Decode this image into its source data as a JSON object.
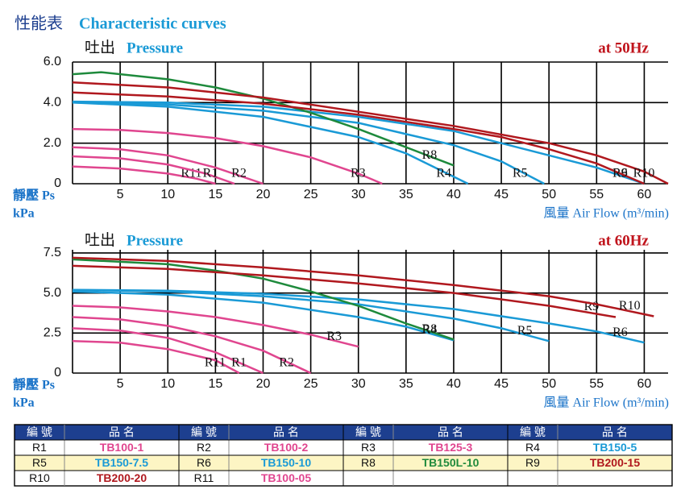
{
  "header": {
    "title": "性能表",
    "subtitle": "Characteristic curves"
  },
  "chart_data": [
    {
      "type": "line",
      "title": "吐出",
      "subtitle": "Pressure",
      "annotation": "at 50Hz",
      "ylabel": "靜壓 Ps",
      "yunit": "kPa",
      "xlabel": "風量 Air Flow (m³/min)",
      "xlim": [
        0,
        62.5
      ],
      "xticks": [
        5,
        10,
        15,
        20,
        25,
        30,
        35,
        40,
        45,
        50,
        55,
        60
      ],
      "ylim": [
        0,
        6
      ],
      "yticks": [
        0,
        {
          "value": 2,
          "label": "2.0"
        },
        {
          "value": 4,
          "label": "4.0"
        },
        {
          "value": 6,
          "label": "6.0"
        }
      ],
      "grid": true,
      "series": [
        {
          "name": "R11",
          "color": "#e0468f",
          "x": [
            0,
            5,
            10,
            13,
            15
          ],
          "values": [
            0.85,
            0.75,
            0.5,
            0.25,
            0
          ]
        },
        {
          "name": "R1",
          "color": "#e0468f",
          "x": [
            0,
            5,
            10,
            14,
            17
          ],
          "values": [
            1.35,
            1.25,
            0.95,
            0.5,
            0
          ]
        },
        {
          "name": "R2",
          "color": "#e0468f",
          "x": [
            0,
            5,
            10,
            15,
            20
          ],
          "values": [
            1.8,
            1.7,
            1.4,
            0.8,
            0
          ]
        },
        {
          "name": "R3",
          "color": "#e0468f",
          "x": [
            0,
            5,
            10,
            15,
            20,
            25,
            30,
            32.5
          ],
          "values": [
            2.7,
            2.65,
            2.5,
            2.25,
            1.85,
            1.3,
            0.5,
            0
          ]
        },
        {
          "name": "R4",
          "color": "#1a9ad6",
          "x": [
            0,
            10,
            20,
            30,
            35,
            41.5
          ],
          "values": [
            4.0,
            3.8,
            3.3,
            2.3,
            1.5,
            0
          ]
        },
        {
          "name": "R5",
          "color": "#1a9ad6",
          "x": [
            0,
            10,
            20,
            30,
            40,
            45,
            49.5
          ],
          "values": [
            4.0,
            3.9,
            3.6,
            3.0,
            1.9,
            1.1,
            0
          ]
        },
        {
          "name": "R6",
          "color": "#1a9ad6",
          "x": [
            0,
            10,
            20,
            30,
            40,
            50,
            55,
            60
          ],
          "values": [
            4.05,
            4.0,
            3.8,
            3.3,
            2.6,
            1.4,
            0.8,
            0
          ]
        },
        {
          "name": "R8",
          "color": "#1e8a3c",
          "x": [
            0,
            3,
            10,
            15,
            20,
            25,
            30,
            35,
            40
          ],
          "values": [
            5.4,
            5.5,
            5.15,
            4.75,
            4.2,
            3.5,
            2.7,
            1.8,
            0.9
          ]
        },
        {
          "name": "R9",
          "color": "#b0181e",
          "x": [
            0,
            10,
            20,
            30,
            40,
            45,
            50,
            55,
            60
          ],
          "values": [
            4.5,
            4.3,
            3.95,
            3.4,
            2.7,
            2.3,
            1.7,
            1.0,
            0
          ]
        },
        {
          "name": "R10",
          "color": "#b0181e",
          "x": [
            0,
            10,
            20,
            30,
            40,
            50,
            55,
            60,
            62.5
          ],
          "values": [
            5.0,
            4.75,
            4.25,
            3.55,
            2.85,
            2.0,
            1.4,
            0.6,
            0
          ]
        }
      ]
    },
    {
      "type": "line",
      "title": "吐出",
      "subtitle": "Pressure",
      "annotation": "at 60Hz",
      "ylabel": "靜壓 Ps",
      "yunit": "kPa",
      "xlabel": "風量 Air Flow (m³/min)",
      "xlim": [
        0,
        62.5
      ],
      "xticks": [
        5,
        10,
        15,
        20,
        25,
        30,
        35,
        40,
        45,
        50,
        55,
        60
      ],
      "ylim": [
        0,
        7.7
      ],
      "yticks": [
        0,
        2.5,
        {
          "value": 5,
          "label": "5.0"
        },
        7.5
      ],
      "grid": true,
      "series": [
        {
          "name": "R11",
          "color": "#e0468f",
          "x": [
            0,
            5,
            10,
            15,
            17.5
          ],
          "values": [
            2.0,
            1.9,
            1.5,
            0.8,
            0
          ]
        },
        {
          "name": "R1",
          "color": "#e0468f",
          "x": [
            0,
            5,
            10,
            15,
            20
          ],
          "values": [
            2.8,
            2.65,
            2.2,
            1.3,
            0
          ]
        },
        {
          "name": "R2",
          "color": "#e0468f",
          "x": [
            0,
            5,
            10,
            15,
            20,
            25
          ],
          "values": [
            3.5,
            3.35,
            2.95,
            2.3,
            1.4,
            0
          ]
        },
        {
          "name": "R3",
          "color": "#e0468f",
          "x": [
            0,
            5,
            10,
            15,
            20,
            25,
            30
          ],
          "values": [
            4.2,
            4.1,
            3.85,
            3.5,
            3.0,
            2.4,
            1.65
          ]
        },
        {
          "name": "R4",
          "color": "#1a9ad6",
          "x": [
            0,
            10,
            20,
            30,
            35,
            40
          ],
          "values": [
            5.1,
            4.9,
            4.4,
            3.5,
            2.9,
            2.05
          ]
        },
        {
          "name": "R5",
          "color": "#1a9ad6",
          "x": [
            0,
            10,
            20,
            30,
            40,
            45,
            50
          ],
          "values": [
            5.2,
            5.1,
            4.8,
            4.3,
            3.4,
            2.8,
            2.0
          ]
        },
        {
          "name": "R6",
          "color": "#1a9ad6",
          "x": [
            0,
            10,
            20,
            30,
            40,
            50,
            55,
            60
          ],
          "values": [
            5.2,
            5.15,
            4.95,
            4.6,
            4.0,
            3.1,
            2.6,
            1.9
          ]
        },
        {
          "name": "R8",
          "color": "#1e8a3c",
          "x": [
            0,
            10,
            15,
            20,
            25,
            30,
            35,
            40
          ],
          "values": [
            7.1,
            6.8,
            6.4,
            5.9,
            5.1,
            4.2,
            3.1,
            2.1
          ]
        },
        {
          "name": "R9",
          "color": "#b0181e",
          "x": [
            0,
            10,
            20,
            30,
            40,
            50,
            57
          ],
          "values": [
            6.7,
            6.5,
            6.1,
            5.6,
            5.0,
            4.2,
            3.5
          ]
        },
        {
          "name": "R10",
          "color": "#b0181e",
          "x": [
            0,
            10,
            20,
            30,
            40,
            50,
            55,
            61
          ],
          "values": [
            7.2,
            7.0,
            6.6,
            6.1,
            5.5,
            4.8,
            4.3,
            3.55
          ]
        }
      ]
    }
  ],
  "table": {
    "header": [
      "編 號",
      "品 名",
      "編 號",
      "品 名",
      "編 號",
      "品 名",
      "編 號",
      "品 名"
    ],
    "rows": [
      [
        "R1",
        "TB100-1",
        "R2",
        "TB100-2",
        "R3",
        "TB125-3",
        "R4",
        "TB150-5"
      ],
      [
        "R5",
        "TB150-7.5",
        "R6",
        "TB150-10",
        "R8",
        "TB150L-10",
        "R9",
        "TB200-15"
      ],
      [
        "R10",
        "TB200-20",
        "R11",
        "TB100-05"
      ]
    ],
    "name_colors": [
      [
        "#e0468f",
        "#e0468f",
        "#e0468f",
        "#1a9ad6"
      ],
      [
        "#1a9ad6",
        "#1a9ad6",
        "#1e8a3c",
        "#b0181e"
      ],
      [
        "#b0181e",
        "#e0468f"
      ]
    ]
  }
}
